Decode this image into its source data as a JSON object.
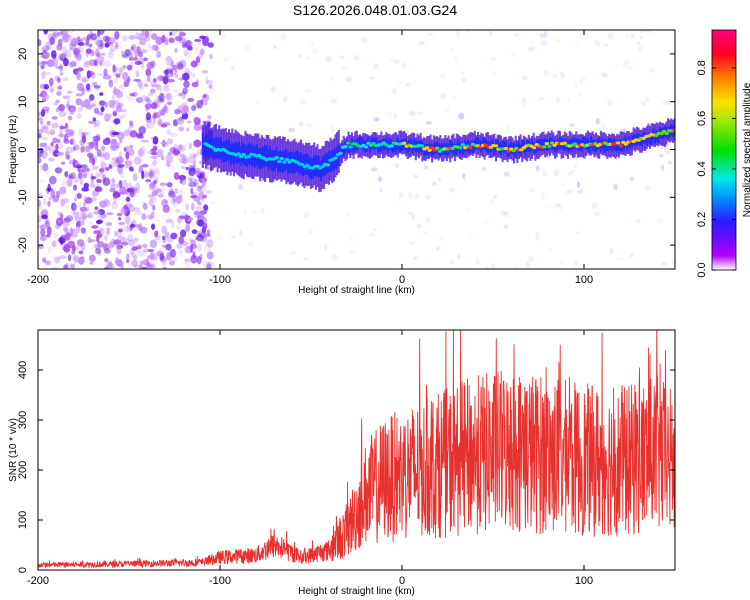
{
  "title": "S126.2026.048.01.03.G24",
  "chart_data": [
    {
      "type": "heatmap",
      "name": "spectrogram",
      "xlabel": "Height of straight line (km)",
      "ylabel": "Frequency (Hz)",
      "xlim": [
        -200,
        150
      ],
      "ylim": [
        -25,
        25
      ],
      "xticks": [
        -200,
        -100,
        0,
        100
      ],
      "yticks": [
        -20,
        -10,
        0,
        10,
        20
      ],
      "colorbar": {
        "label": "Normalized spectral amplitude",
        "range": [
          0,
          0.95
        ],
        "ticks": [
          "0.0",
          "0.2",
          "0.4",
          "0.6",
          "0.8"
        ],
        "tick_values": [
          0.0,
          0.2,
          0.4,
          0.6,
          0.8
        ]
      },
      "ridge": [
        {
          "x": -110,
          "f": 1
        },
        {
          "x": -90,
          "f": -1
        },
        {
          "x": -70,
          "f": -2
        },
        {
          "x": -55,
          "f": -3
        },
        {
          "x": -45,
          "f": -4
        },
        {
          "x": -38,
          "f": -2
        },
        {
          "x": -30,
          "f": 1
        },
        {
          "x": -15,
          "f": 1
        },
        {
          "x": 0,
          "f": 1
        },
        {
          "x": 20,
          "f": 0
        },
        {
          "x": 40,
          "f": 1
        },
        {
          "x": 60,
          "f": 0
        },
        {
          "x": 80,
          "f": 1
        },
        {
          "x": 100,
          "f": 1
        },
        {
          "x": 120,
          "f": 1
        },
        {
          "x": 140,
          "f": 3
        },
        {
          "x": 150,
          "f": 4
        }
      ]
    },
    {
      "type": "line",
      "name": "snr",
      "xlabel": "Height of straight line (km)",
      "ylabel": "SNR (10 * v/v)",
      "xlim": [
        -200,
        150
      ],
      "ylim": [
        0,
        480
      ],
      "xticks": [
        -200,
        -100,
        0,
        100
      ],
      "yticks": [
        0,
        100,
        200,
        300,
        400
      ],
      "color": "#e8312e",
      "series": [
        {
          "name": "SNR",
          "x": [
            -200,
            -150,
            -110,
            -100,
            -80,
            -70,
            -55,
            -40,
            -30,
            -20,
            -10,
            0,
            20,
            40,
            60,
            80,
            100,
            120,
            140,
            150
          ],
          "y": [
            10,
            12,
            15,
            25,
            30,
            50,
            25,
            40,
            80,
            150,
            180,
            190,
            210,
            230,
            240,
            230,
            220,
            215,
            230,
            210
          ]
        }
      ]
    }
  ]
}
